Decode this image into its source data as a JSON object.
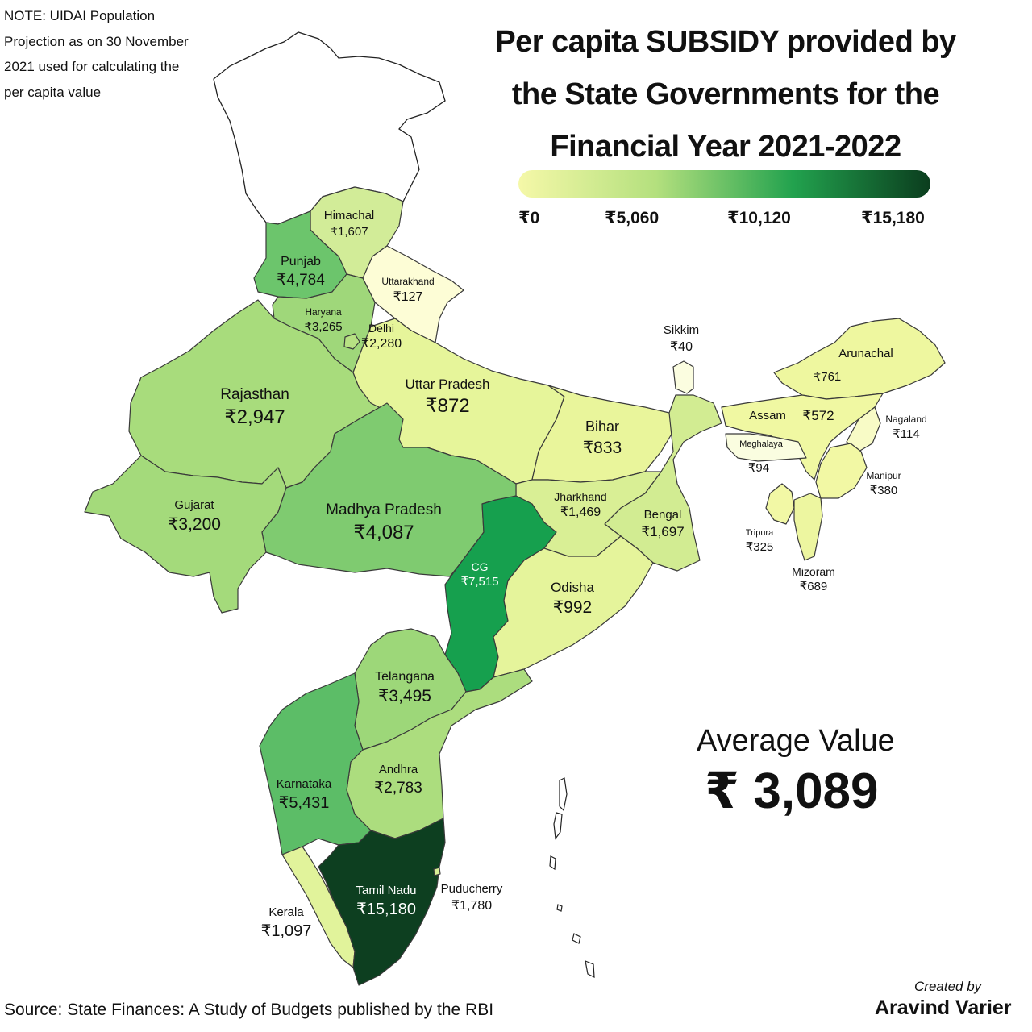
{
  "note": "NOTE: UIDAI Population Projection as on 30 November 2021 used for calculating the per capita value",
  "title": "Per capita SUBSIDY provided by the State Governments for the Financial Year 2021-2022",
  "legend": {
    "ticks": [
      "₹0",
      "₹5,060",
      "₹10,120",
      "₹15,180"
    ],
    "colors": [
      "#f5f8a8",
      "#b4e07e",
      "#22a24e",
      "#0b3d1e"
    ]
  },
  "regions": {
    "himachal": {
      "name": "Himachal",
      "value": "₹1,607"
    },
    "punjab": {
      "name": "Punjab",
      "value": "₹4,784"
    },
    "uttarakhand": {
      "name": "Uttarakhand",
      "value": "₹127"
    },
    "haryana": {
      "name": "Haryana",
      "value": "₹3,265"
    },
    "delhi": {
      "name": "Delhi",
      "value": "₹2,280"
    },
    "rajasthan": {
      "name": "Rajasthan",
      "value": "₹2,947"
    },
    "uttar_pradesh": {
      "name": "Uttar Pradesh",
      "value": "₹872"
    },
    "bihar": {
      "name": "Bihar",
      "value": "₹833"
    },
    "sikkim": {
      "name": "Sikkim",
      "value": "₹40"
    },
    "arunachal": {
      "name": "Arunachal",
      "value": "₹761"
    },
    "assam": {
      "name": "Assam",
      "value": "₹572"
    },
    "nagaland": {
      "name": "Nagaland",
      "value": "₹114"
    },
    "meghalaya": {
      "name": "Meghalaya",
      "value": "₹94"
    },
    "manipur": {
      "name": "Manipur",
      "value": "₹380"
    },
    "gujarat": {
      "name": "Gujarat",
      "value": "₹3,200"
    },
    "madhya_pradesh": {
      "name": "Madhya Pradesh",
      "value": "₹4,087"
    },
    "jharkhand": {
      "name": "Jharkhand",
      "value": "₹1,469"
    },
    "bengal": {
      "name": "Bengal",
      "value": "₹1,697"
    },
    "tripura": {
      "name": "Tripura",
      "value": "₹325"
    },
    "cg": {
      "name": "CG",
      "value": "₹7,515"
    },
    "odisha": {
      "name": "Odisha",
      "value": "₹992"
    },
    "mizoram": {
      "name": "Mizoram",
      "value": "₹689"
    },
    "telangana": {
      "name": "Telangana",
      "value": "₹3,495"
    },
    "karnataka": {
      "name": "Karnataka",
      "value": "₹5,431"
    },
    "andhra": {
      "name": "Andhra",
      "value": "₹2,783"
    },
    "puducherry": {
      "name": "Puducherry",
      "value": "₹1,780"
    },
    "tamil_nadu": {
      "name": "Tamil Nadu",
      "value": "₹15,180"
    },
    "kerala": {
      "name": "Kerala",
      "value": "₹1,097"
    }
  },
  "fills": {
    "himachal": "#d2ec98",
    "punjab": "#6cc56c",
    "uttarakhand": "#fdfdd6",
    "haryana": "#9fd77a",
    "delhi": "#b7e183",
    "rajasthan": "#a8dc7c",
    "uttar_pradesh": "#e6f59a",
    "bihar": "#e9f59b",
    "sikkim": "#fbfde0",
    "arunachal": "#eef79f",
    "assam": "#f0f8a2",
    "nagaland": "#f8fbc6",
    "meghalaya": "#fafde0",
    "manipur": "#f2f8a4",
    "gujarat": "#a4da7b",
    "madhya_pradesh": "#7fcb70",
    "jharkhand": "#d9ef95",
    "bengal": "#d2ec92",
    "tripura": "#f2f8a5",
    "cg": "#16a04e",
    "odisha": "#e5f49b",
    "mizoram": "#edf6a0",
    "telangana": "#9dd779",
    "karnataka": "#5cbd67",
    "andhra": "#acdd7e",
    "puducherry": "#d6ee95",
    "tamil_nadu": "#0d3f20",
    "kerala": "#e1f39b",
    "uncolored": "#ffffff"
  },
  "average": {
    "title": "Average Value",
    "value": "₹ 3,089"
  },
  "source": "Source: State Finances: A Study of Budgets published by the RBI",
  "credit": {
    "created_by": "Created by",
    "author": "Aravind Varier"
  }
}
